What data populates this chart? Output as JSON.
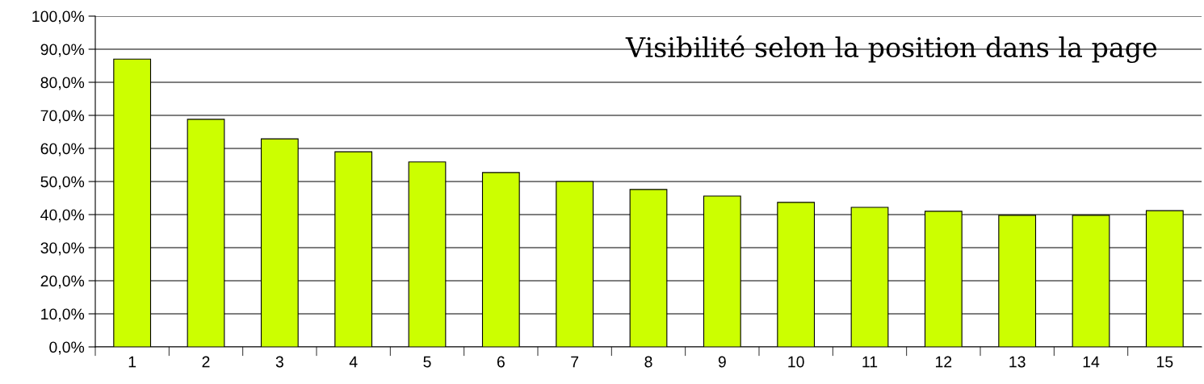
{
  "chart_data": {
    "type": "bar",
    "title": "Visibilité selon la position dans la page",
    "categories": [
      "1",
      "2",
      "3",
      "4",
      "5",
      "6",
      "7",
      "8",
      "9",
      "10",
      "11",
      "12",
      "13",
      "14",
      "15"
    ],
    "values": [
      87.0,
      68.8,
      62.9,
      59.0,
      55.9,
      52.7,
      50.0,
      47.6,
      45.6,
      43.7,
      42.2,
      41.0,
      39.8,
      39.8,
      41.2
    ],
    "color": "#ccff00",
    "ylim": [
      0,
      100
    ],
    "yticks": [
      {
        "value": 0,
        "label": "0,0%"
      },
      {
        "value": 10,
        "label": "10,0%"
      },
      {
        "value": 20,
        "label": "20,0%"
      },
      {
        "value": 30,
        "label": "30,0%"
      },
      {
        "value": 40,
        "label": "40,0%"
      },
      {
        "value": 50,
        "label": "50,0%"
      },
      {
        "value": 60,
        "label": "60,0%"
      },
      {
        "value": 70,
        "label": "70,0%"
      },
      {
        "value": 80,
        "label": "80,0%"
      },
      {
        "value": 90,
        "label": "90,0%"
      },
      {
        "value": 100,
        "label": "100,0%"
      }
    ],
    "grid": "y"
  }
}
